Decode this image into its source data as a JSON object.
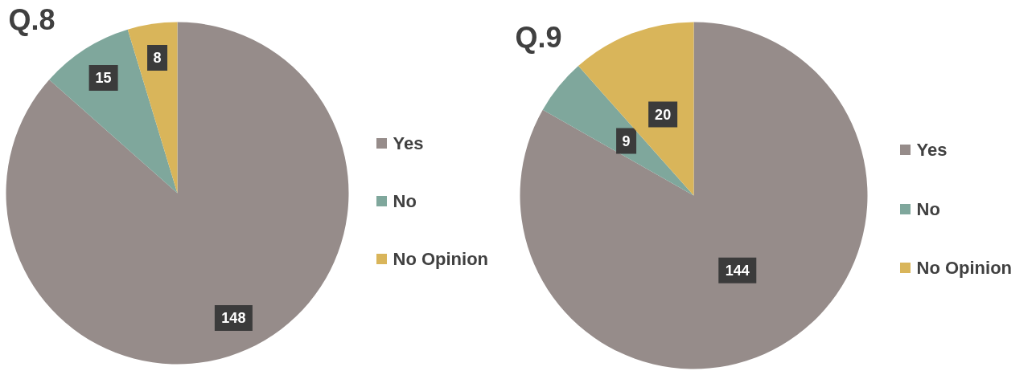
{
  "chart_data": [
    {
      "type": "pie",
      "title": "Q.8",
      "categories": [
        "Yes",
        "No",
        "No Opinion"
      ],
      "values": [
        148,
        15,
        8
      ],
      "colors": [
        "#968c8a",
        "#7fa79c",
        "#d9b55a"
      ],
      "data_labels": true,
      "legend": "right"
    },
    {
      "type": "pie",
      "title": "Q.9",
      "categories": [
        "Yes",
        "No",
        "No Opinion"
      ],
      "values": [
        144,
        9,
        20
      ],
      "colors": [
        "#968c8a",
        "#7fa79c",
        "#d9b55a"
      ],
      "data_labels": true,
      "legend": "right"
    }
  ]
}
